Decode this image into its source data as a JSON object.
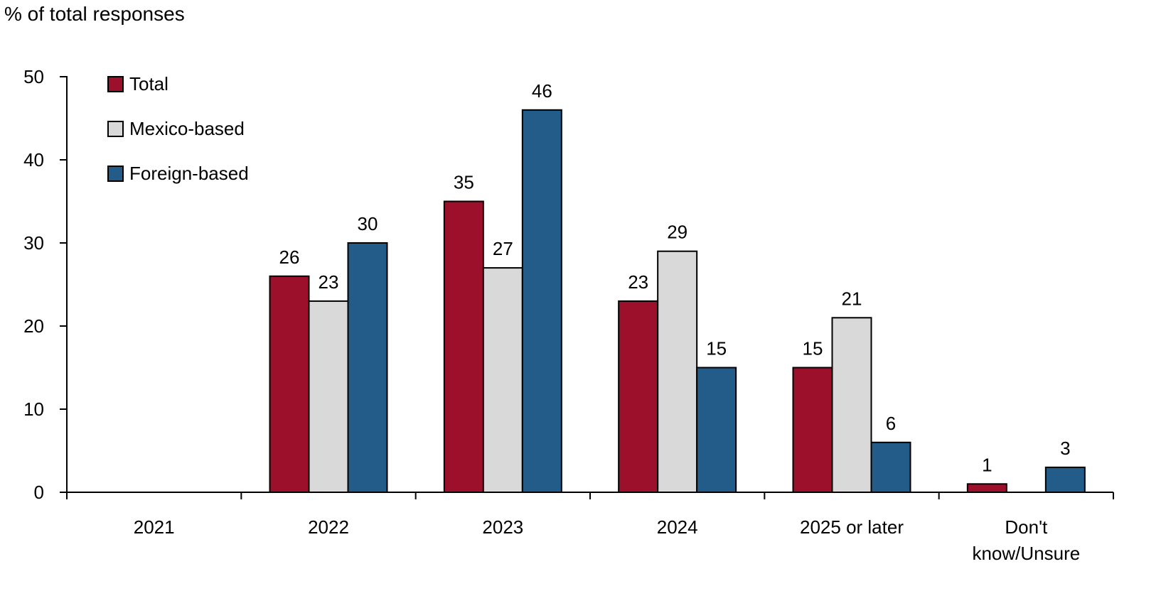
{
  "chart_data": {
    "type": "bar",
    "ylabel": "% of total responses",
    "xlabel": "",
    "title": "",
    "ylim": [
      0,
      50
    ],
    "yticks": [
      0,
      10,
      20,
      30,
      40,
      50
    ],
    "grid": false,
    "legend_placement": "top-left",
    "categories": [
      "2021",
      "2022",
      "2023",
      "2024",
      "2025 or later",
      "Don't know/Unsure"
    ],
    "category_lines": [
      [
        "2021"
      ],
      [
        "2022"
      ],
      [
        "2023"
      ],
      [
        "2024"
      ],
      [
        "2025 or later"
      ],
      [
        "Don't",
        "know/Unsure"
      ]
    ],
    "series": [
      {
        "name": "Total",
        "color": "#9c102c",
        "values": [
          null,
          26,
          35,
          23,
          15,
          1
        ]
      },
      {
        "name": "Mexico-based",
        "color": "#d9d9d9",
        "values": [
          null,
          23,
          27,
          29,
          21,
          null
        ]
      },
      {
        "name": "Foreign-based",
        "color": "#245c89",
        "values": [
          null,
          30,
          46,
          15,
          6,
          3
        ]
      }
    ]
  }
}
